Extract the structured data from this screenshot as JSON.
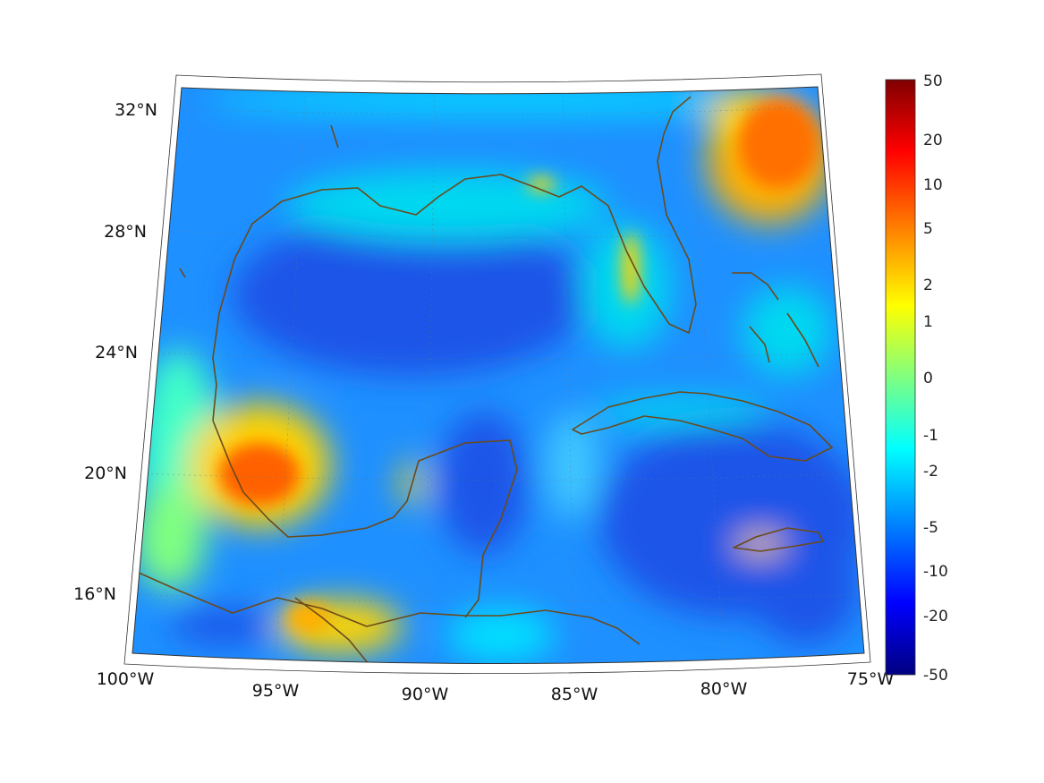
{
  "map": {
    "lon_labels": [
      "100°W",
      "95°W",
      "90°W",
      "85°W",
      "80°W",
      "75°W"
    ],
    "lat_labels": [
      "16°N",
      "20°N",
      "24°N",
      "28°N",
      "32°N"
    ],
    "colorbar": {
      "labels": [
        "50",
        "20",
        "10",
        "5",
        "2",
        "1",
        "0",
        "-1",
        "-2",
        "-5",
        "-10",
        "-20",
        "-50"
      ],
      "colors": [
        "#800000",
        "#ff0000",
        "#ff8000",
        "#ffff00",
        "#80ff80",
        "#00ffff",
        "#0080ff",
        "#0000ff",
        "#000080"
      ]
    },
    "colors": {
      "ocean_deep": "#1a55e8",
      "ocean_mid": "#1e90ff",
      "shelf": "#00e0ff",
      "warm": "#ffd400",
      "hot": "#ff6000",
      "coastline": "#6b4a1a"
    }
  }
}
